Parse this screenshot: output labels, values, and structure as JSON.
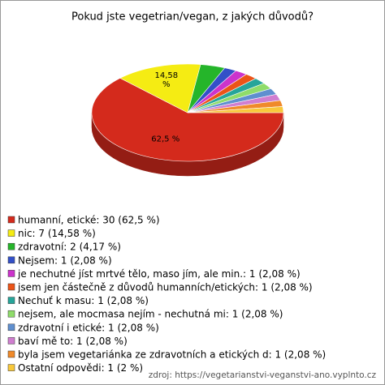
{
  "chart_data": {
    "type": "pie",
    "title": "Pokud jste vegetrian/vegan, z jakých důvodů?",
    "categories": [
      "humanní, etické: 30 (62,5 %)",
      "nic: 7 (14,58 %)",
      "zdravotní: 2 (4,17 %)",
      "Nejsem: 1 (2,08 %)",
      "je nechutné jíst mrtvé tělo, maso jím, ale min.: 1 (2,08 %)",
      "jsem jen částečně z důvodů humanních/etických: 1 (2,08 %)",
      "Nechuť k masu: 1 (2,08 %)",
      "nejsem, ale mocmasa nejím - nechutná mi: 1 (2,08 %)",
      "zdravotní i etické: 1 (2,08 %)",
      "baví mě to: 1 (2,08 %)",
      "byla jsem vegetariánka ze zdravotních a etických d: 1 (2,08 %)",
      "Ostatní odpovědi: 1 (2 %)"
    ],
    "values": [
      62.5,
      14.58,
      4.17,
      2.08,
      2.08,
      2.08,
      2.08,
      2.08,
      2.08,
      2.08,
      2.08,
      2
    ],
    "value_labels": [
      "62,5 %",
      "14,58 %",
      null,
      null,
      null,
      null,
      null,
      null,
      null,
      null,
      null,
      null
    ],
    "colors": [
      "#d42a1c",
      "#f5ec13",
      "#25b52a",
      "#3350c8",
      "#cc33cc",
      "#ec5418",
      "#26a59a",
      "#8fdc6a",
      "#5f8fcf",
      "#d07ed0",
      "#f08a2a",
      "#f8c83a"
    ],
    "source": "zdroj: https://vegetarianstvi-veganstvi-ano.vyplnto.cz"
  }
}
